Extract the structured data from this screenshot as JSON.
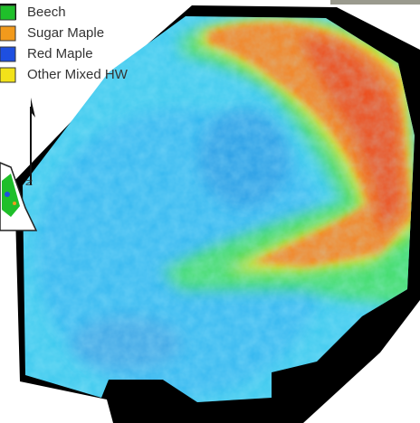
{
  "legend": [
    {
      "label": "Beech",
      "color": "#1fbf2a"
    },
    {
      "label": "Sugar Maple",
      "color": "#f29a1c"
    },
    {
      "label": "Red Maple",
      "color": "#1e4fe0"
    },
    {
      "label": "Other Mixed HW",
      "color": "#f2e21a"
    }
  ],
  "north_label": "N"
}
